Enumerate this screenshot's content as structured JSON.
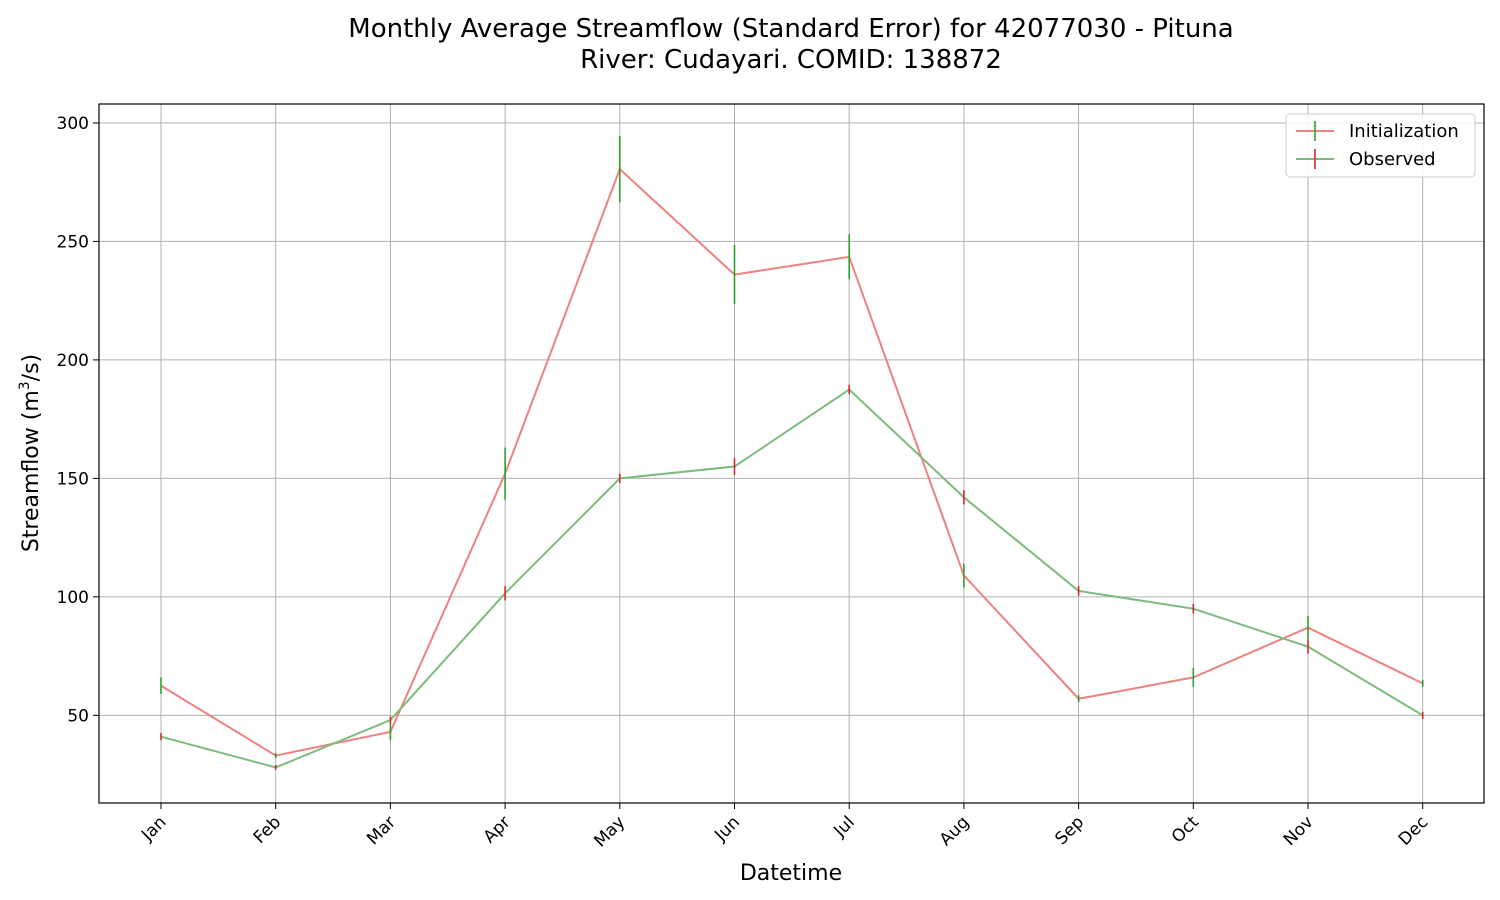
{
  "chart_data": {
    "type": "line",
    "title_line1": "Monthly Average Streamflow (Standard Error) for 42077030 - Pituna",
    "title_line2": "River: Cudayari. COMID: 138872",
    "xlabel": "Datetime",
    "ylabel_prefix": "Streamflow (m",
    "ylabel_sup": "3",
    "ylabel_suffix": "/s)",
    "categories": [
      "Jan",
      "Feb",
      "Mar",
      "Apr",
      "May",
      "Jun",
      "Jul",
      "Aug",
      "Sep",
      "Oct",
      "Nov",
      "Dec"
    ],
    "ylim": [
      13,
      308
    ],
    "yticks": [
      50,
      100,
      150,
      200,
      250,
      300
    ],
    "grid": true,
    "legend_position": "top-right",
    "series": [
      {
        "name": "Initialization",
        "color": "#f08080",
        "errorbar_color": "#2ca02c",
        "values": [
          62.5,
          33,
          43,
          152,
          280.5,
          236,
          243.5,
          109,
          57,
          66,
          87,
          63.5
        ],
        "errors": [
          3.5,
          1,
          3.5,
          11,
          14,
          12.5,
          9.5,
          5,
          1.5,
          4,
          5,
          1.5
        ]
      },
      {
        "name": "Observed",
        "color": "#7dbb7d",
        "errorbar_color": "#d62728",
        "values": [
          41,
          28,
          48,
          101.5,
          150,
          155,
          187.5,
          142,
          102.5,
          95,
          79,
          50
        ],
        "errors": [
          1.5,
          1,
          1.5,
          3,
          2,
          3.5,
          2,
          3,
          2,
          2,
          3,
          1.5
        ]
      }
    ]
  }
}
